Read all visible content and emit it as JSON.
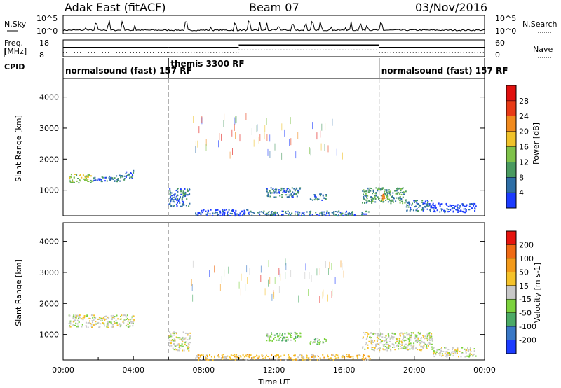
{
  "header": {
    "radar": "Adak East (fitACF)",
    "beam": "Beam 07",
    "date": "03/Nov/2016"
  },
  "chart_data": [
    {
      "type": "line",
      "id": "noise",
      "ylabel_left": "N.Sky",
      "ylabel_right": "N.Search",
      "left_ticks": [
        "10^5",
        "10^0"
      ],
      "right_ticks": [
        "10^5",
        "10^0"
      ],
      "spike_hours": [
        1.3,
        1.9,
        2.6,
        3.4,
        4.1,
        7.0,
        8.4,
        9.8,
        10.6,
        11.2,
        11.6,
        12.3,
        13.1,
        13.8,
        14.2,
        14.7,
        15.3,
        16.1,
        16.4,
        16.9,
        17.3,
        18.1
      ]
    },
    {
      "type": "line",
      "id": "freq",
      "ylabel_left": "Freq. [MHz]",
      "ylabel_right": "Nave",
      "left_ticks": [
        "18",
        "8"
      ],
      "right_ticks": [
        "60",
        "0"
      ],
      "freq_segments": [
        {
          "from": 0,
          "to": 6,
          "level": 0.55
        },
        {
          "from": 6,
          "to": 10,
          "level": 0.55
        },
        {
          "from": 10,
          "to": 18,
          "level": 0.7
        },
        {
          "from": 18,
          "to": 24,
          "level": 0.55
        }
      ]
    },
    {
      "type": "table",
      "id": "cpid",
      "label": "CPID",
      "segments": [
        {
          "start": 0,
          "text": "normalsound (fast) 157 RF"
        },
        {
          "start": 6,
          "text": "themis 3300 RF"
        },
        {
          "start": 18,
          "text": "normalsound (fast) 157 RF"
        }
      ]
    },
    {
      "type": "heatmap",
      "id": "power",
      "ylabel": "Slant Range [km]",
      "yticks": [
        "1000",
        "2000",
        "3000",
        "4000"
      ],
      "ylim": [
        180,
        4600
      ],
      "colorbar": {
        "label": "Power [dB]",
        "ticks": [
          "4",
          "8",
          "12",
          "16",
          "20",
          "24",
          "28"
        ],
        "colors": [
          "#1c3cff",
          "#2e6ea6",
          "#4a9a60",
          "#7fc24a",
          "#f0c22a",
          "#f08a1e",
          "#e83a16",
          "#e0100e"
        ]
      },
      "blobs": [
        {
          "t0": 0.3,
          "t1": 1.6,
          "r0": 1250,
          "r1": 1550,
          "color": 3
        },
        {
          "t0": 1.6,
          "t1": 3.5,
          "r0": 1300,
          "r1": 1500,
          "color": 1
        },
        {
          "t0": 3.5,
          "t1": 4.0,
          "r0": 1400,
          "r1": 1650,
          "color": 1
        },
        {
          "t0": 6.0,
          "t1": 7.2,
          "r0": 500,
          "r1": 1100,
          "color": 1
        },
        {
          "t0": 7.5,
          "t1": 10.6,
          "r0": 200,
          "r1": 400,
          "color": 0
        },
        {
          "t0": 10.6,
          "t1": 17.5,
          "r0": 200,
          "r1": 350,
          "color": 1
        },
        {
          "t0": 11.5,
          "t1": 13.5,
          "r0": 800,
          "r1": 1100,
          "color": 1
        },
        {
          "t0": 14.0,
          "t1": 15.0,
          "r0": 700,
          "r1": 900,
          "color": 1
        },
        {
          "t0": 17.0,
          "t1": 19.5,
          "r0": 600,
          "r1": 1100,
          "color": 2
        },
        {
          "t0": 18.0,
          "t1": 18.4,
          "r0": 700,
          "r1": 900,
          "color": 5
        },
        {
          "t0": 19.5,
          "t1": 21.0,
          "r0": 350,
          "r1": 700,
          "color": 1
        },
        {
          "t0": 21.0,
          "t1": 23.5,
          "r0": 300,
          "r1": 600,
          "color": 0
        }
      ]
    },
    {
      "type": "heatmap",
      "id": "velocity",
      "ylabel": "Slant Range [km]",
      "yticks": [
        "1000",
        "2000",
        "3000",
        "4000"
      ],
      "ylim": [
        180,
        4600
      ],
      "colorbar": {
        "label": "Velocity [m s-1]",
        "ticks": [
          "200",
          "100",
          "50",
          "15",
          "-15",
          "-50",
          "-100",
          "-200"
        ],
        "colors": [
          "#1c3cff",
          "#3a78c6",
          "#4caa66",
          "#7cd23e",
          "#c8c8c8",
          "#f5c22a",
          "#f39a1a",
          "#ef6a14",
          "#e6140e"
        ]
      },
      "blobs": [
        {
          "t0": 0.3,
          "t1": 4.0,
          "r0": 1250,
          "r1": 1650,
          "color": 4
        },
        {
          "t0": 6.0,
          "t1": 7.2,
          "r0": 500,
          "r1": 1100,
          "color": 4
        },
        {
          "t0": 7.5,
          "t1": 17.5,
          "r0": 200,
          "r1": 380,
          "color": 5
        },
        {
          "t0": 11.5,
          "t1": 13.5,
          "r0": 800,
          "r1": 1100,
          "color": 3
        },
        {
          "t0": 14.0,
          "t1": 15.0,
          "r0": 700,
          "r1": 900,
          "color": 3
        },
        {
          "t0": 17.0,
          "t1": 21.0,
          "r0": 500,
          "r1": 1100,
          "color": 4
        },
        {
          "t0": 21.0,
          "t1": 23.5,
          "r0": 300,
          "r1": 600,
          "color": 4
        }
      ]
    }
  ],
  "xaxis": {
    "label": "Time UT",
    "ticks": [
      "00:00",
      "04:00",
      "08:00",
      "12:00",
      "16:00",
      "20:00",
      "00:00"
    ],
    "xlim": [
      0,
      24
    ],
    "markers": [
      6,
      18
    ]
  }
}
